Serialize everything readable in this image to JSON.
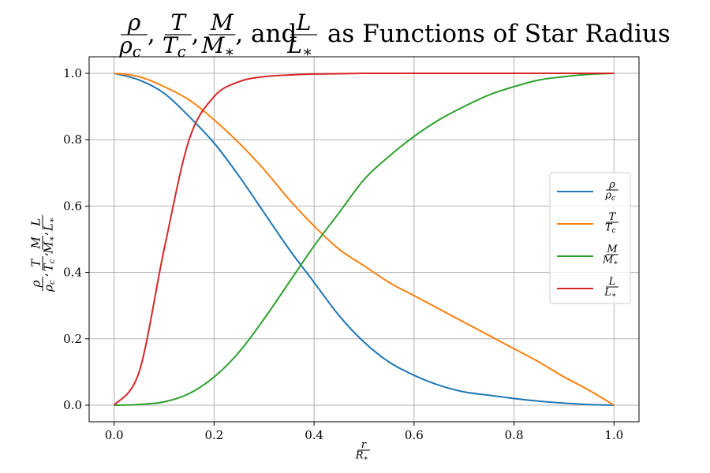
{
  "chart_data": {
    "type": "line",
    "title": {
      "fractions": [
        {
          "num": "ρ",
          "den": "ρ",
          "den_sub": "c"
        },
        {
          "num": "T",
          "den": "T",
          "den_sub": "c"
        },
        {
          "num": "M",
          "den": "M",
          "den_sub": "∗"
        },
        {
          "num": "L",
          "den": "L",
          "den_sub": "∗"
        }
      ],
      "separators": [
        ",",
        ",",
        ", and"
      ],
      "suffix": "as Functions of Star Radius"
    },
    "xlabel": {
      "num": "r",
      "den": "R",
      "den_sub": "∗"
    },
    "ylabel": {
      "fractions": [
        {
          "num": "ρ",
          "den": "ρ",
          "den_sub": "c"
        },
        {
          "num": "T",
          "den": "T",
          "den_sub": "c"
        },
        {
          "num": "M",
          "den": "M",
          "den_sub": "∗"
        },
        {
          "num": "L",
          "den": "L",
          "den_sub": "∗"
        }
      ],
      "separator": ","
    },
    "xlim": [
      -0.05,
      1.05
    ],
    "ylim": [
      -0.05,
      1.05
    ],
    "xticks": [
      "0.0",
      "0.2",
      "0.4",
      "0.6",
      "0.8",
      "1.0"
    ],
    "yticks": [
      "0.0",
      "0.2",
      "0.4",
      "0.6",
      "0.8",
      "1.0"
    ],
    "grid": true,
    "legend_position": "center-right",
    "x": [
      0.0,
      0.05,
      0.1,
      0.15,
      0.2,
      0.25,
      0.3,
      0.35,
      0.4,
      0.45,
      0.5,
      0.55,
      0.6,
      0.65,
      0.7,
      0.75,
      0.8,
      0.85,
      0.9,
      0.95,
      1.0
    ],
    "series": [
      {
        "name": {
          "num": "ρ",
          "den": "ρ",
          "den_sub": "c"
        },
        "color": "#1f77b4",
        "values": [
          1.0,
          0.98,
          0.94,
          0.87,
          0.79,
          0.69,
          0.58,
          0.47,
          0.37,
          0.27,
          0.19,
          0.13,
          0.09,
          0.06,
          0.04,
          0.03,
          0.02,
          0.012,
          0.006,
          0.002,
          0.0
        ]
      },
      {
        "name": {
          "num": "T",
          "den": "T",
          "den_sub": "c"
        },
        "color": "#ff7f0e",
        "values": [
          1.0,
          0.99,
          0.96,
          0.92,
          0.86,
          0.79,
          0.71,
          0.62,
          0.54,
          0.47,
          0.42,
          0.37,
          0.33,
          0.29,
          0.25,
          0.21,
          0.17,
          0.13,
          0.085,
          0.045,
          0.0
        ]
      },
      {
        "name": {
          "num": "M",
          "den": "M",
          "den_sub": "∗"
        },
        "color": "#2ca02c",
        "values": [
          0.0,
          0.002,
          0.01,
          0.035,
          0.085,
          0.16,
          0.26,
          0.37,
          0.48,
          0.58,
          0.68,
          0.75,
          0.81,
          0.86,
          0.9,
          0.935,
          0.96,
          0.98,
          0.99,
          0.997,
          1.0
        ]
      },
      {
        "name": {
          "num": "L",
          "den": "L",
          "den_sub": "∗"
        },
        "color": "#d62728",
        "values": [
          0.0,
          0.1,
          0.47,
          0.8,
          0.93,
          0.975,
          0.99,
          0.995,
          0.998,
          0.999,
          1.0,
          1.0,
          1.0,
          1.0,
          1.0,
          1.0,
          1.0,
          1.0,
          1.0,
          1.0,
          1.0
        ]
      }
    ]
  }
}
